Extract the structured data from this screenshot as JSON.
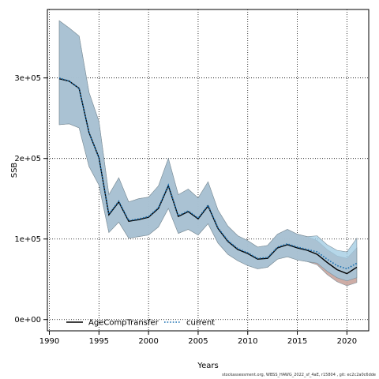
{
  "chart_data": {
    "type": "line",
    "title": "",
    "xlabel": "Years",
    "ylabel": "SSB",
    "xlim": [
      1989.8,
      2022.2
    ],
    "ylim": [
      -14000,
      385000
    ],
    "x_ticks": [
      1990,
      1995,
      2000,
      2005,
      2010,
      2015,
      2020
    ],
    "x_tick_labels": [
      "1990",
      "1995",
      "2000",
      "2005",
      "2010",
      "2015",
      "2020"
    ],
    "y_ticks": [
      0,
      100000,
      200000,
      300000
    ],
    "y_tick_labels": [
      "0e+00",
      "1e+05",
      "2e+05",
      "3e+05"
    ],
    "grid": true,
    "legend_position": "bottom-left",
    "x": [
      1991,
      1992,
      1993,
      1994,
      1995,
      1996,
      1997,
      1998,
      1999,
      2000,
      2001,
      2002,
      2003,
      2004,
      2005,
      2006,
      2007,
      2008,
      2009,
      2010,
      2011,
      2012,
      2013,
      2014,
      2015,
      2016,
      2017,
      2018,
      2019,
      2020,
      2021
    ],
    "series": [
      {
        "name": "AgeCompTransfer",
        "color": "#000000",
        "style": "solid",
        "values": [
          299000,
          296000,
          287000,
          232000,
          201000,
          130000,
          146000,
          122000,
          124000,
          127000,
          138000,
          166000,
          128000,
          134000,
          125000,
          141000,
          113000,
          97000,
          87000,
          82000,
          75000,
          76000,
          89000,
          93000,
          89000,
          86000,
          81000,
          71000,
          62000,
          57000,
          65000
        ],
        "lower": [
          242000,
          243000,
          238000,
          190000,
          167000,
          108000,
          121000,
          101000,
          103000,
          105000,
          115000,
          138000,
          107000,
          112000,
          105000,
          119000,
          95000,
          81000,
          73000,
          67000,
          63000,
          65000,
          75000,
          78000,
          74000,
          72000,
          68000,
          56000,
          47000,
          42000,
          46000
        ],
        "upper": [
          371000,
          362000,
          352000,
          282000,
          246000,
          155000,
          176000,
          146000,
          150000,
          152000,
          166000,
          200000,
          155000,
          162000,
          151000,
          171000,
          136000,
          116000,
          104000,
          98000,
          90000,
          92000,
          106000,
          112000,
          106000,
          103000,
          98000,
          87000,
          79000,
          76000,
          89000
        ],
        "band_color": "#c9a49c"
      },
      {
        "name": "current",
        "color": "#1a6fb0",
        "style": "dotted",
        "values": [
          300000,
          296000,
          287000,
          232000,
          201000,
          131000,
          147000,
          123000,
          125000,
          128000,
          139000,
          167000,
          129000,
          135000,
          126000,
          142000,
          114000,
          98000,
          88000,
          83000,
          76000,
          77000,
          90000,
          94000,
          90000,
          87000,
          84000,
          75000,
          67000,
          63000,
          70000
        ],
        "lower": [
          242000,
          243000,
          238000,
          190000,
          167000,
          108000,
          121000,
          101000,
          103000,
          105000,
          115000,
          138000,
          107000,
          112000,
          105000,
          119000,
          95000,
          81000,
          73000,
          67000,
          63000,
          65000,
          75000,
          78000,
          74000,
          72000,
          70000,
          60000,
          52000,
          48000,
          52000
        ],
        "upper": [
          371000,
          362000,
          352000,
          282000,
          246000,
          155000,
          176000,
          146000,
          150000,
          152000,
          166000,
          200000,
          155000,
          162000,
          151000,
          171000,
          136000,
          116000,
          104000,
          98000,
          90000,
          92000,
          106000,
          112000,
          106000,
          103000,
          104000,
          93000,
          86000,
          84000,
          101000
        ],
        "band_color": "#9ecae1"
      }
    ]
  },
  "footer": "stockassessment.org, WBSS_HAWG_2022_sf_4aE, r15804 , git: ec2c2a0c6dde"
}
